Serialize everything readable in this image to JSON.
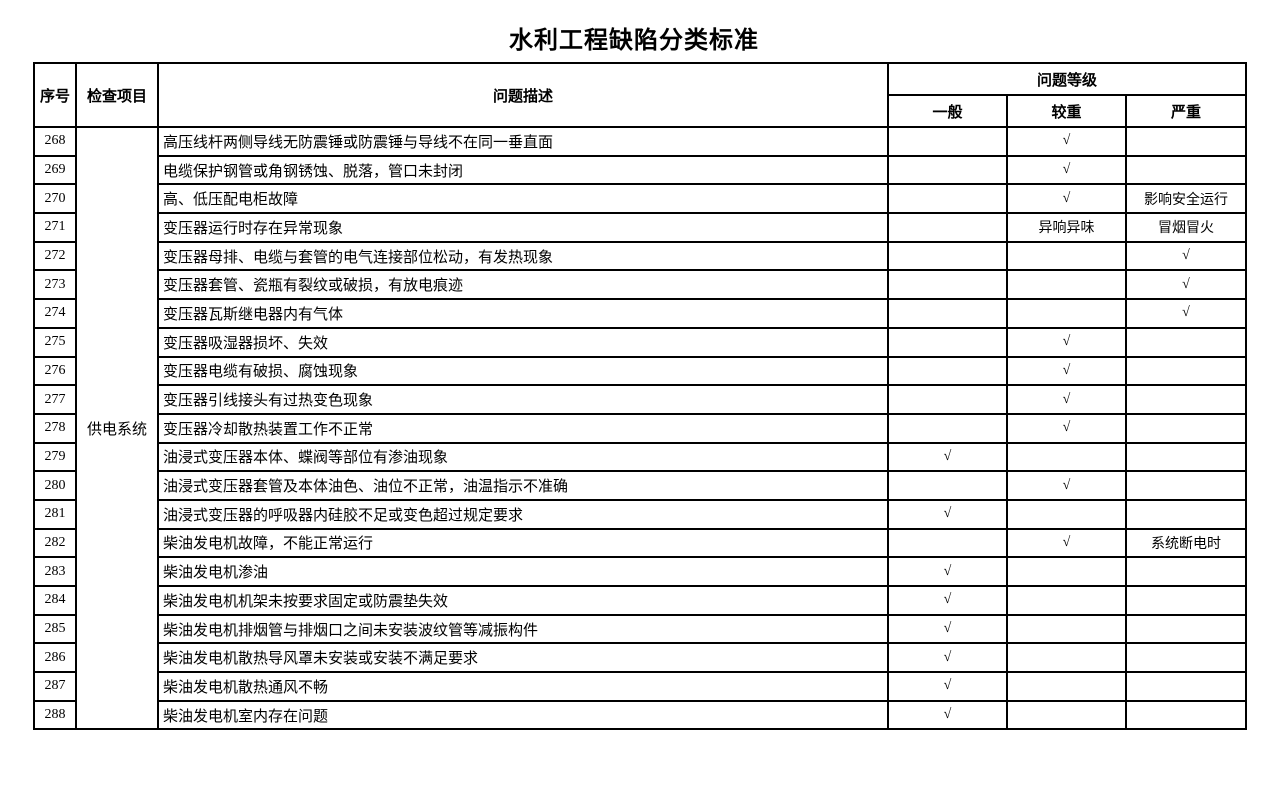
{
  "title": "水利工程缺陷分类标准",
  "table": {
    "headers": {
      "no": "序号",
      "item": "检查项目",
      "description": "问题描述",
      "level_group": "问题等级",
      "general": "一般",
      "moderate": "较重",
      "severe": "严重"
    },
    "inspection_item": "供电系统",
    "check_mark": "√",
    "rows": [
      {
        "no": "268",
        "desc": "高压线杆两侧导线无防震锤或防震锤与导线不在同一垂直面",
        "general": "",
        "moderate": "√",
        "severe": ""
      },
      {
        "no": "269",
        "desc": "电缆保护钢管或角钢锈蚀、脱落，管口未封闭",
        "general": "",
        "moderate": "√",
        "severe": ""
      },
      {
        "no": "270",
        "desc": "高、低压配电柜故障",
        "general": "",
        "moderate": "√",
        "severe": "影响安全运行"
      },
      {
        "no": "271",
        "desc": "变压器运行时存在异常现象",
        "general": "",
        "moderate": "异响异味",
        "severe": "冒烟冒火"
      },
      {
        "no": "272",
        "desc": "变压器母排、电缆与套管的电气连接部位松动，有发热现象",
        "general": "",
        "moderate": "",
        "severe": "√"
      },
      {
        "no": "273",
        "desc": "变压器套管、瓷瓶有裂纹或破损，有放电痕迹",
        "general": "",
        "moderate": "",
        "severe": "√"
      },
      {
        "no": "274",
        "desc": "变压器瓦斯继电器内有气体",
        "general": "",
        "moderate": "",
        "severe": "√"
      },
      {
        "no": "275",
        "desc": "变压器吸湿器损坏、失效",
        "general": "",
        "moderate": "√",
        "severe": ""
      },
      {
        "no": "276",
        "desc": "变压器电缆有破损、腐蚀现象",
        "general": "",
        "moderate": "√",
        "severe": ""
      },
      {
        "no": "277",
        "desc": "变压器引线接头有过热变色现象",
        "general": "",
        "moderate": "√",
        "severe": ""
      },
      {
        "no": "278",
        "desc": "变压器冷却散热装置工作不正常",
        "general": "",
        "moderate": "√",
        "severe": ""
      },
      {
        "no": "279",
        "desc": "油浸式变压器本体、蝶阀等部位有渗油现象",
        "general": "√",
        "moderate": "",
        "severe": ""
      },
      {
        "no": "280",
        "desc": "油浸式变压器套管及本体油色、油位不正常，油温指示不准确",
        "general": "",
        "moderate": "√",
        "severe": ""
      },
      {
        "no": "281",
        "desc": "油浸式变压器的呼吸器内硅胶不足或变色超过规定要求",
        "general": "√",
        "moderate": "",
        "severe": ""
      },
      {
        "no": "282",
        "desc": "柴油发电机故障，不能正常运行",
        "general": "",
        "moderate": "√",
        "severe": "系统断电时"
      },
      {
        "no": "283",
        "desc": "柴油发电机渗油",
        "general": "√",
        "moderate": "",
        "severe": ""
      },
      {
        "no": "284",
        "desc": "柴油发电机机架未按要求固定或防震垫失效",
        "general": "√",
        "moderate": "",
        "severe": ""
      },
      {
        "no": "285",
        "desc": "柴油发电机排烟管与排烟口之间未安装波纹管等减振构件",
        "general": "√",
        "moderate": "",
        "severe": ""
      },
      {
        "no": "286",
        "desc": "柴油发电机散热导风罩未安装或安装不满足要求",
        "general": "√",
        "moderate": "",
        "severe": ""
      },
      {
        "no": "287",
        "desc": "柴油发电机散热通风不畅",
        "general": "√",
        "moderate": "",
        "severe": ""
      },
      {
        "no": "288",
        "desc": "柴油发电机室内存在问题",
        "general": "√",
        "moderate": "",
        "severe": ""
      }
    ]
  }
}
